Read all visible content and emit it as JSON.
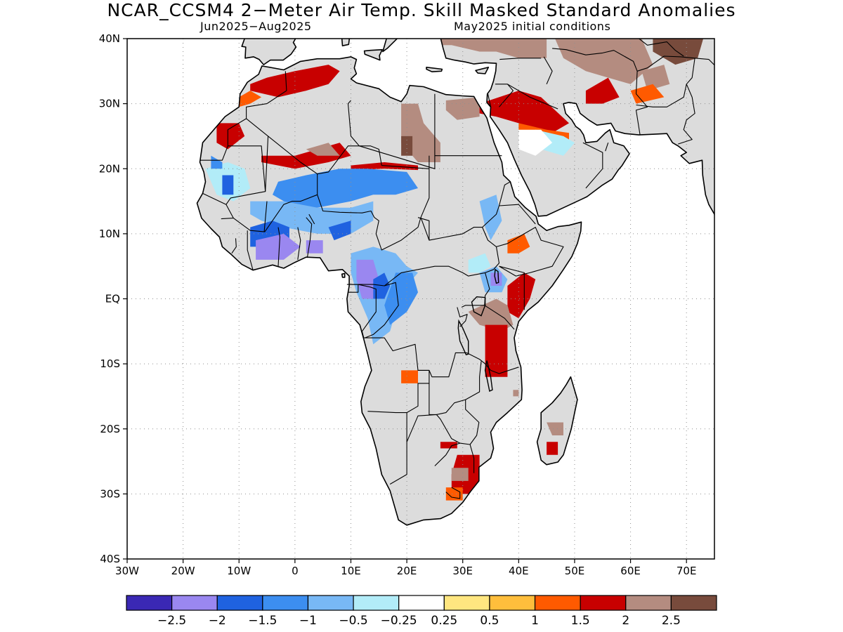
{
  "title": "NCAR_CCSM4 2−Meter Air Temp. Skill Masked Standard Anomalies",
  "subtitle_left": "Jun2025−Aug2025",
  "subtitle_right": "May2025 initial conditions",
  "map": {
    "lon_range": [
      -30,
      75
    ],
    "lat_range": [
      -40,
      40
    ],
    "lat_ticks": [
      {
        "value": 40,
        "label": "40N"
      },
      {
        "value": 30,
        "label": "30N"
      },
      {
        "value": 20,
        "label": "20N"
      },
      {
        "value": 10,
        "label": "10N"
      },
      {
        "value": 0,
        "label": "EQ"
      },
      {
        "value": -10,
        "label": "10S"
      },
      {
        "value": -20,
        "label": "20S"
      },
      {
        "value": -30,
        "label": "30S"
      },
      {
        "value": -40,
        "label": "40S"
      }
    ],
    "lon_ticks": [
      {
        "value": -30,
        "label": "30W"
      },
      {
        "value": -20,
        "label": "20W"
      },
      {
        "value": -10,
        "label": "10W"
      },
      {
        "value": 0,
        "label": "0"
      },
      {
        "value": 10,
        "label": "10E"
      },
      {
        "value": 20,
        "label": "20E"
      },
      {
        "value": 30,
        "label": "30E"
      },
      {
        "value": 40,
        "label": "40E"
      },
      {
        "value": 50,
        "label": "50E"
      },
      {
        "value": 60,
        "label": "60E"
      },
      {
        "value": 70,
        "label": "70E"
      }
    ],
    "masked_color": "#dcdcdc",
    "coast_color": "#000000"
  },
  "colorbar": {
    "colors": [
      "#3a28b4",
      "#9a87f0",
      "#1f62e0",
      "#3c8ef0",
      "#78b8f5",
      "#b2ecf8",
      "#ffffff",
      "#ffe680",
      "#ffbe3c",
      "#ff5a00",
      "#c80000",
      "#b48c80",
      "#784b3c"
    ],
    "labels": [
      "−2.5",
      "−2",
      "−1.5",
      "−1",
      "−0.5",
      "−0.25",
      "0.25",
      "0.5",
      "1",
      "1.5",
      "2",
      "2.5"
    ]
  },
  "anomaly_regions": [
    {
      "value": 1.5,
      "pts": [
        [
          -8,
          32
        ],
        [
          -3,
          31
        ],
        [
          2,
          32
        ],
        [
          6,
          33
        ],
        [
          8,
          35
        ],
        [
          6,
          36
        ],
        [
          0,
          35
        ],
        [
          -5,
          34
        ],
        [
          -8,
          33
        ]
      ]
    },
    {
      "value": 1.0,
      "pts": [
        [
          -12,
          29
        ],
        [
          -8,
          30
        ],
        [
          -6,
          31
        ],
        [
          -8,
          32
        ],
        [
          -12,
          30
        ]
      ]
    },
    {
      "value": 1.5,
      "pts": [
        [
          -14,
          27
        ],
        [
          -10,
          27
        ],
        [
          -9,
          25
        ],
        [
          -12,
          23
        ],
        [
          -14,
          24
        ]
      ]
    },
    {
      "value": 1.5,
      "pts": [
        [
          -6,
          22
        ],
        [
          0,
          22
        ],
        [
          4,
          23
        ],
        [
          8,
          24
        ],
        [
          10,
          22
        ],
        [
          6,
          21
        ],
        [
          0,
          20
        ],
        [
          -6,
          21
        ]
      ]
    },
    {
      "value": 2.0,
      "pts": [
        [
          2,
          23
        ],
        [
          6,
          24
        ],
        [
          8,
          22
        ],
        [
          4,
          22
        ]
      ]
    },
    {
      "value": 1.5,
      "pts": [
        [
          10,
          20.5
        ],
        [
          16,
          21
        ],
        [
          22,
          20.5
        ],
        [
          22,
          19.8
        ],
        [
          16,
          20
        ],
        [
          10,
          19.8
        ]
      ]
    },
    {
      "value": 2.0,
      "pts": [
        [
          19,
          30
        ],
        [
          22,
          30
        ],
        [
          23,
          27
        ],
        [
          26,
          24
        ],
        [
          26,
          21
        ],
        [
          22,
          21
        ],
        [
          19,
          24
        ]
      ]
    },
    {
      "value": 2.5,
      "pts": [
        [
          19,
          25
        ],
        [
          21,
          25
        ],
        [
          21,
          22
        ],
        [
          19,
          22
        ]
      ]
    },
    {
      "value": 2.0,
      "pts": [
        [
          27,
          30.5
        ],
        [
          33,
          31
        ],
        [
          33,
          28
        ],
        [
          29,
          27.5
        ],
        [
          27,
          29
        ]
      ]
    },
    {
      "value": 1.5,
      "pts": [
        [
          33,
          30
        ],
        [
          40,
          32
        ],
        [
          44,
          31
        ],
        [
          49,
          27
        ],
        [
          45,
          25
        ],
        [
          40,
          27
        ],
        [
          36,
          28
        ],
        [
          33,
          28.5
        ]
      ]
    },
    {
      "value": 1.0,
      "pts": [
        [
          40,
          27
        ],
        [
          45,
          26
        ],
        [
          49,
          25.5
        ],
        [
          49,
          24.5
        ],
        [
          45,
          25
        ],
        [
          40,
          26
        ]
      ]
    },
    {
      "value": 2.0,
      "pts": [
        [
          21,
          41
        ],
        [
          28,
          41
        ],
        [
          34,
          41
        ],
        [
          45,
          41
        ],
        [
          45,
          37
        ],
        [
          40,
          37
        ],
        [
          36,
          38
        ],
        [
          33,
          38
        ],
        [
          28,
          39
        ],
        [
          22,
          39
        ]
      ]
    },
    {
      "value": 2.0,
      "pts": [
        [
          46,
          41
        ],
        [
          56,
          41
        ],
        [
          62,
          40
        ],
        [
          64,
          36
        ],
        [
          60,
          33
        ],
        [
          56,
          34
        ],
        [
          52,
          35
        ],
        [
          48,
          37
        ]
      ]
    },
    {
      "value": 1.5,
      "pts": [
        [
          52,
          32
        ],
        [
          56,
          34
        ],
        [
          58,
          31
        ],
        [
          55,
          30
        ],
        [
          52,
          30
        ]
      ]
    },
    {
      "value": 2.5,
      "pts": [
        [
          64,
          41
        ],
        [
          69,
          41
        ],
        [
          73,
          40
        ],
        [
          72,
          37
        ],
        [
          68,
          36
        ],
        [
          64,
          38
        ]
      ]
    },
    {
      "value": 2.0,
      "pts": [
        [
          62,
          35
        ],
        [
          66,
          36
        ],
        [
          67,
          33
        ],
        [
          63,
          32
        ]
      ]
    },
    {
      "value": 1.0,
      "pts": [
        [
          60,
          32
        ],
        [
          64,
          33
        ],
        [
          66,
          31
        ],
        [
          61,
          30
        ]
      ]
    },
    {
      "value": -0.5,
      "pts": [
        [
          43,
          26
        ],
        [
          48,
          25
        ],
        [
          50,
          24
        ],
        [
          48,
          22
        ],
        [
          44,
          23
        ],
        [
          42,
          24
        ]
      ]
    },
    {
      "value": -0.25,
      "pts": [
        [
          40,
          26
        ],
        [
          44,
          26
        ],
        [
          46,
          24
        ],
        [
          43,
          22
        ],
        [
          40,
          23
        ]
      ]
    },
    {
      "value": -0.5,
      "pts": [
        [
          -16,
          20
        ],
        [
          -12,
          21
        ],
        [
          -9,
          20
        ],
        [
          -8,
          17
        ],
        [
          -11,
          15
        ],
        [
          -14,
          16
        ]
      ]
    },
    {
      "value": -1.5,
      "pts": [
        [
          -15,
          22
        ],
        [
          -13,
          21
        ],
        [
          -13,
          20
        ],
        [
          -15,
          20
        ]
      ]
    },
    {
      "value": -2.0,
      "pts": [
        [
          -13,
          19
        ],
        [
          -11,
          19
        ],
        [
          -11,
          16
        ],
        [
          -13,
          16
        ]
      ]
    },
    {
      "value": -1.5,
      "pts": [
        [
          -3,
          18
        ],
        [
          2,
          19
        ],
        [
          8,
          20
        ],
        [
          13,
          20
        ],
        [
          20,
          19.5
        ],
        [
          22,
          17
        ],
        [
          18,
          16
        ],
        [
          14,
          16
        ],
        [
          10,
          15
        ],
        [
          4,
          14
        ],
        [
          0,
          14
        ],
        [
          -4,
          16
        ]
      ]
    },
    {
      "value": -1.0,
      "pts": [
        [
          -8,
          15
        ],
        [
          -2,
          15
        ],
        [
          4,
          14
        ],
        [
          10,
          14
        ],
        [
          14,
          15
        ],
        [
          14,
          12
        ],
        [
          10,
          10
        ],
        [
          4,
          10
        ],
        [
          -2,
          11
        ],
        [
          -6,
          12
        ],
        [
          -8,
          13
        ]
      ]
    },
    {
      "value": -2.0,
      "pts": [
        [
          -8,
          11
        ],
        [
          -4,
          12
        ],
        [
          -1,
          11
        ],
        [
          -1,
          9
        ],
        [
          -4,
          8
        ],
        [
          -8,
          8
        ]
      ]
    },
    {
      "value": -2.0,
      "pts": [
        [
          6,
          11
        ],
        [
          10,
          12
        ],
        [
          10,
          10
        ],
        [
          7,
          9
        ]
      ]
    },
    {
      "value": -2.5,
      "pts": [
        [
          -7,
          9
        ],
        [
          -2,
          10
        ],
        [
          1,
          8
        ],
        [
          -2,
          6
        ],
        [
          -7,
          6
        ]
      ]
    },
    {
      "value": -2.5,
      "pts": [
        [
          2,
          9
        ],
        [
          5,
          9
        ],
        [
          5,
          7
        ],
        [
          2,
          7
        ]
      ]
    },
    {
      "value": -1.0,
      "pts": [
        [
          10,
          7
        ],
        [
          14,
          8
        ],
        [
          18,
          7
        ],
        [
          20,
          5
        ],
        [
          22,
          4
        ],
        [
          20,
          2
        ],
        [
          18,
          -2
        ],
        [
          17,
          -5
        ],
        [
          14,
          -7
        ],
        [
          13,
          -3
        ],
        [
          11,
          1
        ],
        [
          10,
          4
        ]
      ]
    },
    {
      "value": -2.5,
      "pts": [
        [
          11,
          6
        ],
        [
          14,
          6
        ],
        [
          15,
          3
        ],
        [
          14,
          0
        ],
        [
          12,
          0
        ],
        [
          11,
          3
        ]
      ]
    },
    {
      "value": -2.0,
      "pts": [
        [
          14,
          3
        ],
        [
          16,
          4
        ],
        [
          17,
          2
        ],
        [
          16,
          0
        ],
        [
          14,
          0
        ]
      ]
    },
    {
      "value": -1.5,
      "pts": [
        [
          18,
          4
        ],
        [
          21,
          4
        ],
        [
          22,
          1
        ],
        [
          20,
          -2
        ],
        [
          17,
          -4
        ],
        [
          16,
          -1
        ]
      ]
    },
    {
      "value": -1.0,
      "pts": [
        [
          33,
          15
        ],
        [
          36,
          16
        ],
        [
          37,
          12
        ],
        [
          35,
          9
        ],
        [
          34,
          11
        ]
      ]
    },
    {
      "value": -0.5,
      "pts": [
        [
          31,
          6
        ],
        [
          34,
          7
        ],
        [
          35,
          5
        ],
        [
          33,
          4
        ],
        [
          31,
          4
        ]
      ]
    },
    {
      "value": -1.0,
      "pts": [
        [
          33,
          4
        ],
        [
          36,
          5
        ],
        [
          38,
          3
        ],
        [
          37,
          1
        ],
        [
          34,
          1
        ]
      ]
    },
    {
      "value": -2.5,
      "pts": [
        [
          35,
          4
        ],
        [
          37,
          4
        ],
        [
          37,
          2
        ],
        [
          35,
          2
        ]
      ]
    },
    {
      "value": 1.0,
      "pts": [
        [
          38,
          9
        ],
        [
          41,
          10
        ],
        [
          42,
          8
        ],
        [
          40,
          7
        ],
        [
          38,
          7
        ]
      ]
    },
    {
      "value": 1.5,
      "pts": [
        [
          38,
          2
        ],
        [
          41,
          4
        ],
        [
          43,
          3
        ],
        [
          42,
          0
        ],
        [
          40,
          -3
        ],
        [
          38,
          -2
        ]
      ]
    },
    {
      "value": 2.0,
      "pts": [
        [
          31,
          -2
        ],
        [
          36,
          0
        ],
        [
          38,
          -1
        ],
        [
          39,
          -4
        ],
        [
          37,
          -5
        ],
        [
          33,
          -4
        ]
      ]
    },
    {
      "value": 1.5,
      "pts": [
        [
          34,
          -4
        ],
        [
          38,
          -4
        ],
        [
          38,
          -12
        ],
        [
          34,
          -12
        ]
      ]
    },
    {
      "value": 2.0,
      "pts": [
        [
          45,
          -19
        ],
        [
          48,
          -19
        ],
        [
          48,
          -21
        ],
        [
          46,
          -21
        ]
      ]
    },
    {
      "value": 1.5,
      "pts": [
        [
          45,
          -22
        ],
        [
          47,
          -22
        ],
        [
          47,
          -24
        ],
        [
          45,
          -24
        ]
      ]
    },
    {
      "value": 2.0,
      "pts": [
        [
          39,
          -14
        ],
        [
          40,
          -14
        ],
        [
          40,
          -15
        ],
        [
          39,
          -15
        ]
      ]
    },
    {
      "value": 1.5,
      "pts": [
        [
          26,
          -22
        ],
        [
          29,
          -22
        ],
        [
          29,
          -23
        ],
        [
          26,
          -23
        ]
      ]
    },
    {
      "value": 1.5,
      "pts": [
        [
          29,
          -24
        ],
        [
          33,
          -24
        ],
        [
          33,
          -28
        ],
        [
          31,
          -30
        ],
        [
          28,
          -30
        ],
        [
          28,
          -27
        ]
      ]
    },
    {
      "value": 2.0,
      "pts": [
        [
          28,
          -26
        ],
        [
          31,
          -26
        ],
        [
          31,
          -28
        ],
        [
          28,
          -28
        ]
      ]
    },
    {
      "value": 1.0,
      "pts": [
        [
          27,
          -29
        ],
        [
          30,
          -29
        ],
        [
          30,
          -31
        ],
        [
          27,
          -31
        ]
      ]
    },
    {
      "value": 1.0,
      "pts": [
        [
          19,
          -11
        ],
        [
          22,
          -11
        ],
        [
          22,
          -13
        ],
        [
          19,
          -13
        ]
      ]
    }
  ]
}
